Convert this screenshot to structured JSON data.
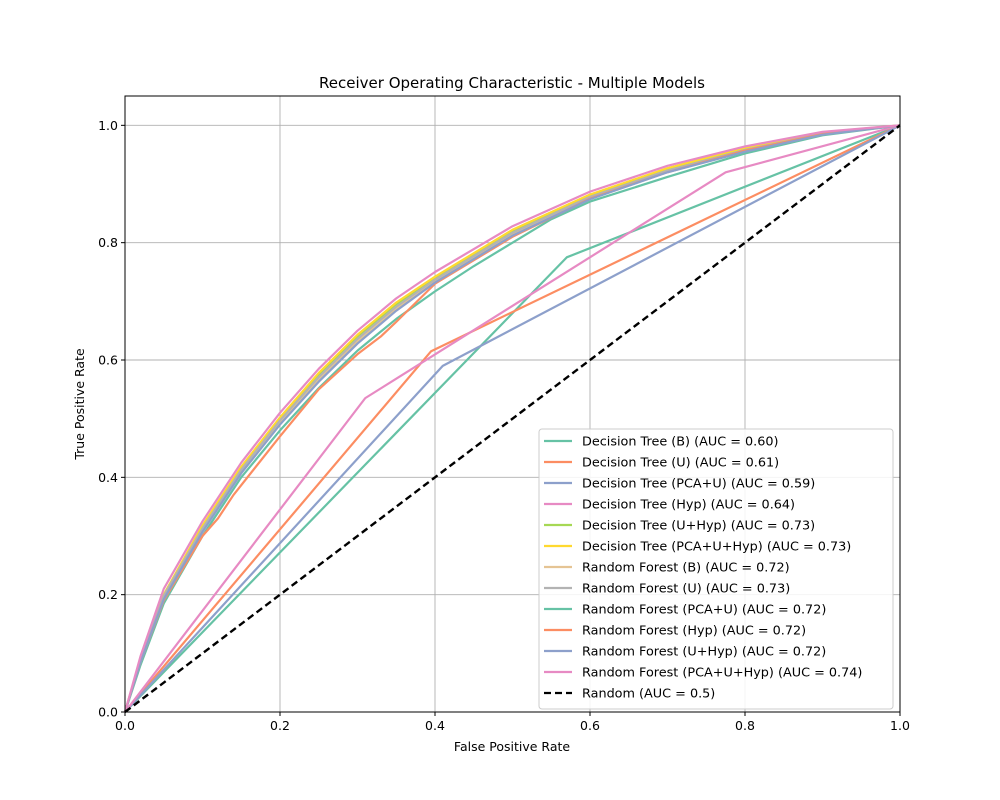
{
  "chart_data": {
    "type": "line",
    "title": "Receiver Operating Characteristic - Multiple Models",
    "xlabel": "False Positive Rate",
    "ylabel": "True Positive Rate",
    "xlim": [
      0.0,
      1.0
    ],
    "ylim": [
      0.0,
      1.05
    ],
    "xticks": [
      "0.0",
      "0.2",
      "0.4",
      "0.6",
      "0.8",
      "1.0"
    ],
    "yticks": [
      "0.0",
      "0.2",
      "0.4",
      "0.6",
      "0.8",
      "1.0"
    ],
    "grid": true,
    "legend_position": "lower-right",
    "series": [
      {
        "name": "Decision Tree (B) (AUC = 0.60)",
        "color": "#66c2a5",
        "dash": "solid",
        "x": [
          0,
          0.57,
          1
        ],
        "y": [
          0,
          0.775,
          1
        ]
      },
      {
        "name": "Decision Tree (U) (AUC = 0.61)",
        "color": "#fc8d62",
        "dash": "solid",
        "x": [
          0,
          0.395,
          1
        ],
        "y": [
          0,
          0.615,
          1
        ]
      },
      {
        "name": "Decision Tree (PCA+U) (AUC = 0.59)",
        "color": "#8da0cb",
        "dash": "solid",
        "x": [
          0,
          0.41,
          1
        ],
        "y": [
          0,
          0.59,
          1
        ]
      },
      {
        "name": "Decision Tree (Hyp) (AUC = 0.64)",
        "color": "#e78ac3",
        "dash": "solid",
        "x": [
          0,
          0.31,
          0.775,
          1
        ],
        "y": [
          0,
          0.535,
          0.92,
          1
        ]
      },
      {
        "name": "Decision Tree (U+Hyp) (AUC = 0.73)",
        "color": "#a6d854",
        "dash": "solid",
        "x": [
          0,
          0.02,
          0.05,
          0.1,
          0.15,
          0.2,
          0.25,
          0.3,
          0.35,
          0.4,
          0.5,
          0.6,
          0.7,
          0.8,
          0.9,
          1
        ],
        "y": [
          0,
          0.09,
          0.2,
          0.315,
          0.415,
          0.5,
          0.575,
          0.64,
          0.695,
          0.74,
          0.82,
          0.88,
          0.925,
          0.96,
          0.987,
          1
        ]
      },
      {
        "name": "Decision Tree (PCA+U+Hyp) (AUC = 0.73)",
        "color": "#ffd92f",
        "dash": "solid",
        "x": [
          0,
          0.02,
          0.05,
          0.1,
          0.15,
          0.2,
          0.25,
          0.3,
          0.35,
          0.4,
          0.5,
          0.6,
          0.7,
          0.8,
          0.9,
          1
        ],
        "y": [
          0,
          0.09,
          0.2,
          0.318,
          0.418,
          0.502,
          0.578,
          0.643,
          0.698,
          0.742,
          0.822,
          0.882,
          0.927,
          0.962,
          0.988,
          1
        ]
      },
      {
        "name": "Random Forest (B) (AUC = 0.72)",
        "color": "#e5c494",
        "dash": "solid",
        "x": [
          0,
          0.02,
          0.05,
          0.1,
          0.15,
          0.2,
          0.25,
          0.3,
          0.35,
          0.4,
          0.5,
          0.6,
          0.7,
          0.8,
          0.9,
          1
        ],
        "y": [
          0,
          0.085,
          0.195,
          0.31,
          0.41,
          0.493,
          0.567,
          0.632,
          0.688,
          0.735,
          0.815,
          0.877,
          0.922,
          0.957,
          0.985,
          1
        ]
      },
      {
        "name": "Random Forest (U) (AUC = 0.73)",
        "color": "#b3b3b3",
        "dash": "solid",
        "x": [
          0,
          0.02,
          0.05,
          0.1,
          0.15,
          0.2,
          0.25,
          0.3,
          0.35,
          0.4,
          0.5,
          0.6,
          0.7,
          0.8,
          0.9,
          1
        ],
        "y": [
          0,
          0.088,
          0.198,
          0.313,
          0.413,
          0.497,
          0.571,
          0.636,
          0.691,
          0.737,
          0.817,
          0.878,
          0.923,
          0.958,
          0.986,
          1
        ]
      },
      {
        "name": "Random Forest (PCA+U) (AUC = 0.72)",
        "color": "#66c2a5",
        "dash": "solid",
        "x": [
          0,
          0.02,
          0.05,
          0.1,
          0.15,
          0.2,
          0.25,
          0.3,
          0.35,
          0.4,
          0.45,
          0.5,
          0.55,
          0.6,
          0.7,
          0.8,
          0.9,
          1
        ],
        "y": [
          0,
          0.08,
          0.185,
          0.3,
          0.4,
          0.48,
          0.552,
          0.616,
          0.67,
          0.717,
          0.76,
          0.8,
          0.84,
          0.87,
          0.912,
          0.952,
          0.983,
          1
        ]
      },
      {
        "name": "Random Forest (Hyp) (AUC = 0.72)",
        "color": "#fc8d62",
        "dash": "solid",
        "x": [
          0,
          0.02,
          0.05,
          0.1,
          0.12,
          0.14,
          0.2,
          0.25,
          0.3,
          0.33,
          0.35,
          0.4,
          0.5,
          0.6,
          0.7,
          0.8,
          0.9,
          1
        ],
        "y": [
          0,
          0.085,
          0.19,
          0.3,
          0.33,
          0.37,
          0.47,
          0.55,
          0.61,
          0.64,
          0.665,
          0.73,
          0.81,
          0.875,
          0.92,
          0.957,
          0.985,
          1
        ]
      },
      {
        "name": "Random Forest (U+Hyp) (AUC = 0.72)",
        "color": "#8da0cb",
        "dash": "solid",
        "x": [
          0,
          0.02,
          0.05,
          0.1,
          0.15,
          0.2,
          0.25,
          0.3,
          0.35,
          0.4,
          0.5,
          0.6,
          0.7,
          0.8,
          0.9,
          1
        ],
        "y": [
          0,
          0.085,
          0.192,
          0.307,
          0.407,
          0.49,
          0.563,
          0.628,
          0.684,
          0.732,
          0.812,
          0.874,
          0.92,
          0.955,
          0.984,
          1
        ]
      },
      {
        "name": "Random Forest (PCA+U+Hyp) (AUC = 0.74)",
        "color": "#e78ac3",
        "dash": "solid",
        "x": [
          0,
          0.02,
          0.05,
          0.1,
          0.15,
          0.2,
          0.25,
          0.3,
          0.35,
          0.4,
          0.5,
          0.6,
          0.7,
          0.8,
          0.9,
          1
        ],
        "y": [
          0,
          0.095,
          0.21,
          0.325,
          0.425,
          0.51,
          0.585,
          0.65,
          0.705,
          0.75,
          0.828,
          0.887,
          0.931,
          0.964,
          0.989,
          1
        ]
      },
      {
        "name": "Random (AUC = 0.5)",
        "color": "#000000",
        "dash": "dashed",
        "x": [
          0,
          1
        ],
        "y": [
          0,
          1
        ]
      }
    ]
  }
}
